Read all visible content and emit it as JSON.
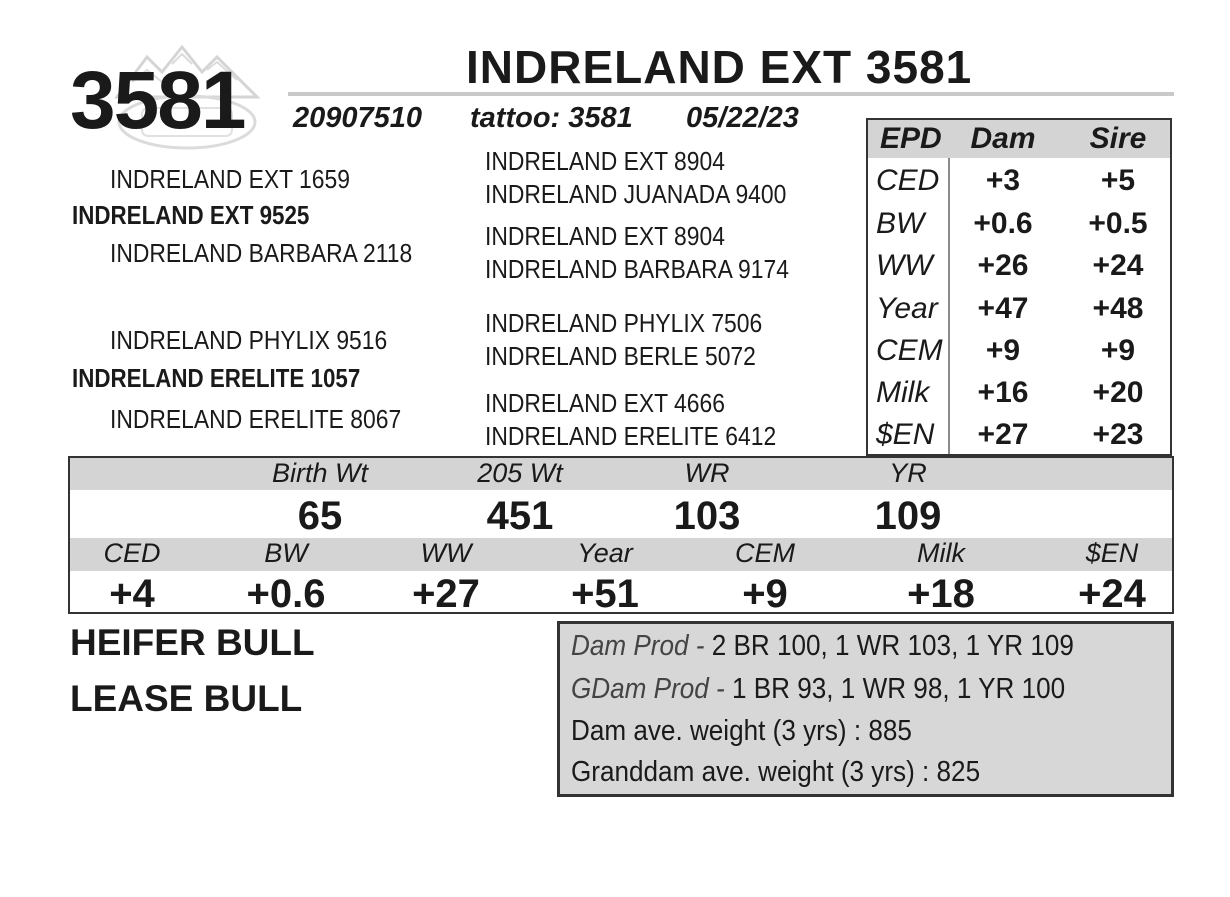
{
  "lot_number": "3581",
  "animal_name": "INDRELAND EXT 3581",
  "registration": "20907510",
  "tattoo": "tattoo: 3581",
  "birth_date": "05/22/23",
  "pedigree": {
    "sire": "INDRELAND EXT 9525",
    "sire_sire": "INDRELAND EXT 1659",
    "sire_dam": "INDRELAND BARBARA 2118",
    "dam": "INDRELAND ERELITE 1057",
    "dam_sire": "INDRELAND PHYLIX 9516",
    "dam_dam": "INDRELAND ERELITE 8067",
    "ggp": [
      "INDRELAND EXT 8904",
      "INDRELAND JUANADA 9400",
      "INDRELAND EXT 8904",
      "INDRELAND BARBARA 9174",
      "INDRELAND PHYLIX 7506",
      "INDRELAND BERLE 5072",
      "INDRELAND EXT 4666",
      "INDRELAND ERELITE 6412"
    ]
  },
  "epd_table": {
    "headers": [
      "EPD",
      "Dam",
      "Sire"
    ],
    "rows": [
      {
        "trait": "CED",
        "dam": "+3",
        "sire": "+5"
      },
      {
        "trait": "BW",
        "dam": "+0.6",
        "sire": "+0.5"
      },
      {
        "trait": "WW",
        "dam": "+26",
        "sire": "+24"
      },
      {
        "trait": "Year",
        "dam": "+47",
        "sire": "+48"
      },
      {
        "trait": "CEM",
        "dam": "+9",
        "sire": "+9"
      },
      {
        "trait": "Milk",
        "dam": "+16",
        "sire": "+20"
      },
      {
        "trait": "$EN",
        "dam": "+27",
        "sire": "+23"
      }
    ]
  },
  "weights": {
    "labels": [
      "Birth Wt",
      "205 Wt",
      "WR",
      "YR"
    ],
    "values": [
      "65",
      "451",
      "103",
      "109"
    ]
  },
  "calf_epds": {
    "labels": [
      "CED",
      "BW",
      "WW",
      "Year",
      "CEM",
      "Milk",
      "$EN"
    ],
    "values": [
      "+4",
      "+0.6",
      "+27",
      "+51",
      "+9",
      "+18",
      "+24"
    ]
  },
  "designations": [
    "HEIFER BULL",
    "LEASE BULL"
  ],
  "production": {
    "dam_prod_label": "Dam Prod - ",
    "dam_prod": "2 BR 100, 1 WR 103, 1 YR 109",
    "gdam_prod_label": "GDam Prod - ",
    "gdam_prod": "1 BR 93, 1 WR 98, 1 YR 100",
    "dam_weight": "Dam ave. weight (3 yrs) : 885",
    "granddam_weight": "Granddam ave. weight (3 yrs) : 825"
  },
  "logo_icon": "ranch-mountain-logo-icon"
}
